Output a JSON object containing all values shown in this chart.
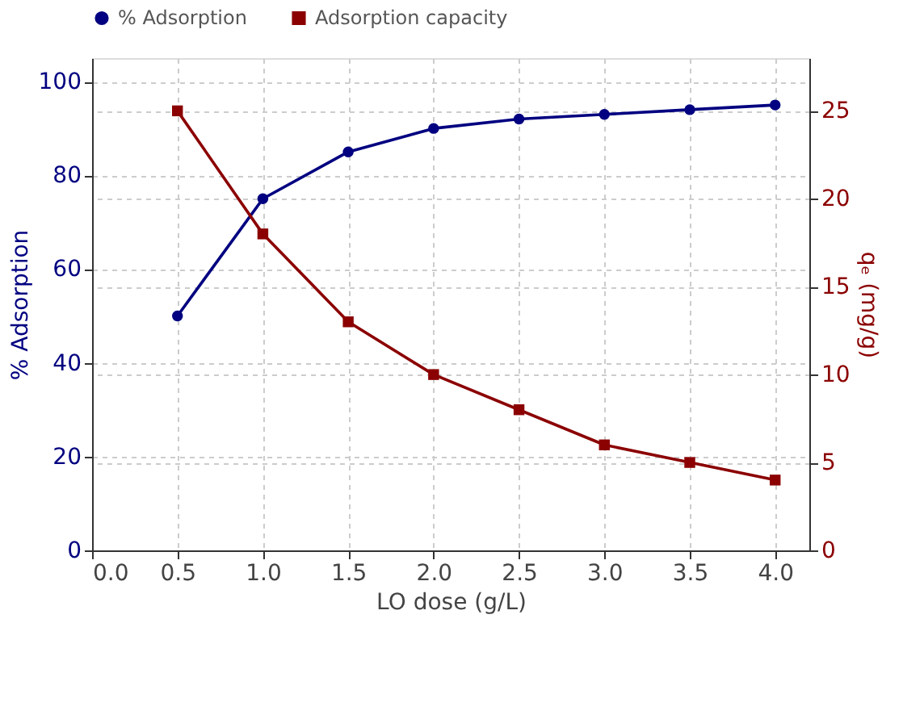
{
  "chart_data": {
    "type": "line",
    "xlabel": "LO dose (g/L)",
    "ylabel": "% Adsorption",
    "y2label": "qₑ (mg/g)",
    "x": [
      0.5,
      1.0,
      1.5,
      2.0,
      2.5,
      3.0,
      3.5,
      4.0
    ],
    "series": [
      {
        "name": "% Adsorption",
        "color": "#000080",
        "marker": "circle",
        "values": [
          50,
          75,
          85,
          90,
          92,
          93,
          94,
          95
        ]
      },
      {
        "name": "Adsorption capacity",
        "color": "#8b0000",
        "marker": "square",
        "axis": "y2",
        "values": [
          25,
          18,
          13,
          10,
          8,
          6,
          5,
          4
        ]
      }
    ],
    "xlim": [
      0,
      4.2
    ],
    "xticks": [
      {
        "value": 0,
        "label": "0.0"
      },
      {
        "value": 0.5,
        "label": "0.5"
      },
      {
        "value": 1,
        "label": "1.0"
      },
      {
        "value": 1.5,
        "label": "1.5"
      },
      {
        "value": 2,
        "label": "2.0"
      },
      {
        "value": 2.5,
        "label": "2.5"
      },
      {
        "value": 3,
        "label": "3.0"
      },
      {
        "value": 3.5,
        "label": "3.5"
      },
      {
        "value": 4,
        "label": "4.0"
      }
    ],
    "ylim": [
      0,
      105
    ],
    "yticks": [
      0,
      20,
      40,
      60,
      80,
      100
    ],
    "y2lim": [
      0,
      28
    ],
    "y2ticks": [
      0,
      5,
      10,
      15,
      20,
      25
    ],
    "grid": true,
    "legend": "top",
    "line_style": "solid"
  }
}
